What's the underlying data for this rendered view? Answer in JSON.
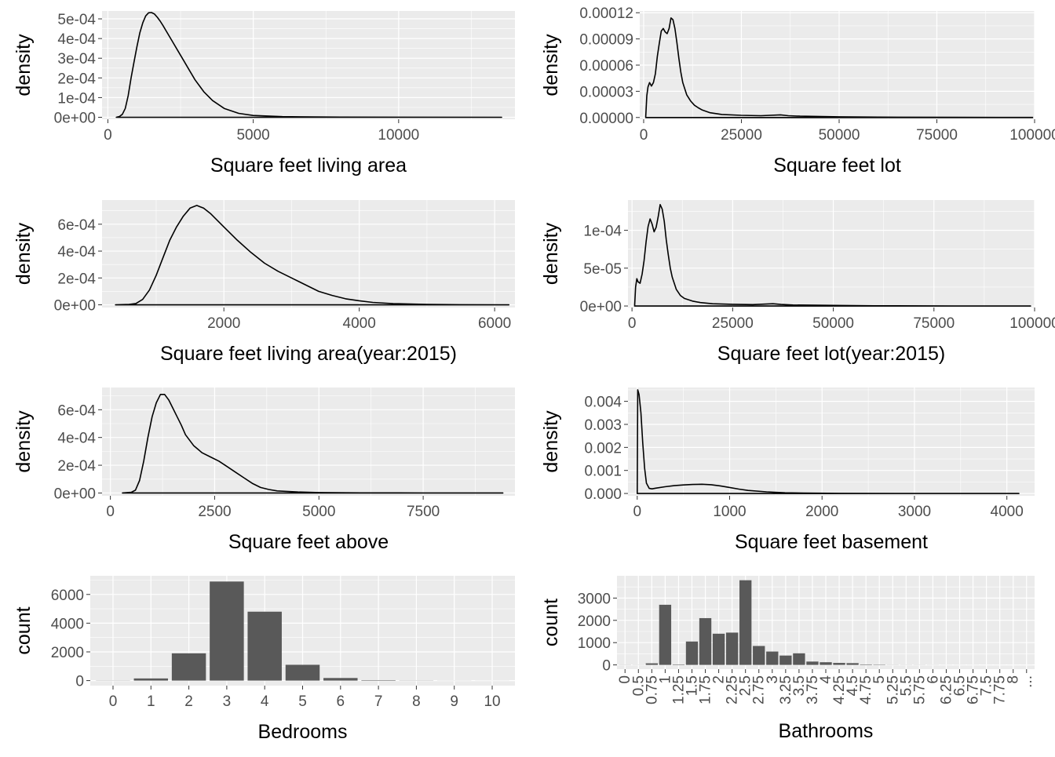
{
  "colors": {
    "panel_bg": "#ebebeb",
    "grid": "#ffffff",
    "line": "#000000",
    "bar": "#595959",
    "tick_text": "#4d4d4d",
    "title_text": "#000000"
  },
  "chart_data": [
    {
      "id": "sqft-living",
      "type": "line",
      "xlabel": "Square feet living area",
      "ylabel": "density",
      "xlim": [
        -200,
        14000
      ],
      "ylim": [
        -1e-05,
        0.00054
      ],
      "xticks": [
        0,
        5000,
        10000
      ],
      "xticklabels": [
        "0",
        "5000",
        "10000"
      ],
      "yticks": [
        0,
        0.0001,
        0.0002,
        0.0003,
        0.0004,
        0.0005
      ],
      "yticklabels": [
        "0e+00",
        "1e-04",
        "2e-04",
        "3e-04",
        "4e-04",
        "5e-04"
      ],
      "x": [
        290,
        400,
        500,
        600,
        700,
        800,
        900,
        1000,
        1100,
        1200,
        1300,
        1400,
        1500,
        1600,
        1700,
        1800,
        1900,
        2000,
        2200,
        2400,
        2600,
        2800,
        3000,
        3300,
        3600,
        4000,
        4500,
        5000,
        6000,
        8000,
        10000,
        13540
      ],
      "y": [
        1e-07,
        4e-06,
        1.5e-05,
        4.5e-05,
        0.00011,
        0.0002,
        0.00028,
        0.00036,
        0.00043,
        0.00048,
        0.000515,
        0.000531,
        0.000532,
        0.000525,
        0.000508,
        0.000488,
        0.000465,
        0.00044,
        0.00039,
        0.00034,
        0.00029,
        0.00024,
        0.00019,
        0.00013,
        8.5e-05,
        4.5e-05,
        2e-05,
        9e-06,
        3e-06,
        8e-07,
        2e-07,
        1e-07
      ]
    },
    {
      "id": "sqft-lot",
      "type": "line",
      "xlabel": "Square feet lot",
      "ylabel": "density",
      "xlim": [
        -1000,
        100000
      ],
      "ylim": [
        -2e-06,
        0.000122
      ],
      "xticks": [
        0,
        25000,
        50000,
        75000,
        100000
      ],
      "xticklabels": [
        "0",
        "25000",
        "50000",
        "75000",
        "100000"
      ],
      "yticks": [
        0,
        3e-05,
        6e-05,
        9e-05,
        0.00012
      ],
      "yticklabels": [
        "0.00000",
        "0.00003",
        "0.00006",
        "0.00009",
        "0.00012"
      ],
      "x": [
        520,
        800,
        1100,
        1500,
        2000,
        2500,
        3000,
        3500,
        4000,
        4500,
        5000,
        5500,
        6000,
        6500,
        7000,
        7500,
        8000,
        8500,
        9000,
        9500,
        10000,
        11000,
        12000,
        13000,
        14000,
        15000,
        17000,
        20000,
        25000,
        30000,
        35000,
        37000,
        40000,
        50000,
        60000,
        80000,
        99500
      ],
      "y": [
        5e-07,
        2.5e-05,
        3.5e-05,
        4e-05,
        3.6e-05,
        4e-05,
        5e-05,
        7e-05,
        8.5e-05,
        9.9e-05,
        0.000102,
        9.8e-05,
        9.6e-05,
        0.000102,
        0.000114,
        0.000112,
        0.000102,
        8.6e-05,
        6.8e-05,
        5.2e-05,
        4e-05,
        2.6e-05,
        1.9e-05,
        1.4e-05,
        1.1e-05,
        8.5e-06,
        5.5e-06,
        3.5e-06,
        2.5e-06,
        2e-06,
        3e-06,
        2e-06,
        1.5e-06,
        8e-07,
        4e-07,
        2e-07,
        1e-07
      ]
    },
    {
      "id": "sqft-living-2015",
      "type": "line",
      "xlabel": "Square feet living area(year:2015)",
      "ylabel": "density",
      "xlim": [
        200,
        6300
      ],
      "ylim": [
        -2e-05,
        0.00078
      ],
      "xticks": [
        2000,
        4000,
        6000
      ],
      "xticklabels": [
        "2000",
        "4000",
        "6000"
      ],
      "yticks": [
        0,
        0.0002,
        0.0004,
        0.0006
      ],
      "yticklabels": [
        "0e+00",
        "2e-04",
        "4e-04",
        "6e-04"
      ],
      "x": [
        399,
        600,
        700,
        800,
        900,
        1000,
        1100,
        1200,
        1300,
        1400,
        1500,
        1600,
        1700,
        1800,
        1900,
        2000,
        2200,
        2400,
        2600,
        2800,
        3000,
        3200,
        3400,
        3600,
        3800,
        4000,
        4200,
        4500,
        5000,
        5500,
        6210
      ],
      "y": [
        1e-07,
        3e-06,
        1e-05,
        4e-05,
        0.00011,
        0.00022,
        0.00035,
        0.00048,
        0.00058,
        0.00066,
        0.00072,
        0.00074,
        0.00072,
        0.00068,
        0.00063,
        0.00058,
        0.00048,
        0.00039,
        0.00031,
        0.00025,
        0.0002,
        0.00015,
        0.0001,
        7e-05,
        4.5e-05,
        3e-05,
        1.8e-05,
        9e-06,
        3e-06,
        1e-06,
        1e-07
      ]
    },
    {
      "id": "sqft-lot-2015",
      "type": "line",
      "xlabel": "Square feet lot(year:2015)",
      "ylabel": "density",
      "xlim": [
        -1000,
        100000
      ],
      "ylim": [
        -2e-06,
        0.00014
      ],
      "xticks": [
        0,
        25000,
        50000,
        75000,
        100000
      ],
      "xticklabels": [
        "0",
        "25000",
        "50000",
        "75000",
        "100000"
      ],
      "yticks": [
        0,
        5e-05,
        0.0001
      ],
      "yticklabels": [
        "0e+00",
        "5e-05",
        "1e-04"
      ],
      "x": [
        651,
        900,
        1200,
        1500,
        2000,
        2500,
        3000,
        3500,
        4000,
        4500,
        5000,
        5500,
        6000,
        6500,
        7000,
        7500,
        8000,
        8500,
        9000,
        9500,
        10000,
        11000,
        12000,
        13000,
        15000,
        17000,
        20000,
        25000,
        30000,
        35000,
        37000,
        40000,
        50000,
        60000,
        80000,
        99000
      ],
      "y": [
        5e-07,
        2.5e-05,
        3.6e-05,
        3.2e-05,
        3e-05,
        4.2e-05,
        6e-05,
        8.5e-05,
        0.000105,
        0.000115,
        0.000108,
        9.8e-05,
        0.000104,
        0.000118,
        0.000134,
        0.000128,
        0.000112,
        8.8e-05,
        6.8e-05,
        5e-05,
        3.8e-05,
        2.2e-05,
        1.4e-05,
        1e-05,
        6.5e-06,
        4.5e-06,
        3e-06,
        2.2e-06,
        1.8e-06,
        3e-06,
        2e-06,
        1.3e-06,
        8e-07,
        3e-07,
        1e-07,
        1e-07
      ]
    },
    {
      "id": "sqft-above",
      "type": "line",
      "xlabel": "Square feet above",
      "ylabel": "density",
      "xlim": [
        -200,
        9700
      ],
      "ylim": [
        -2e-05,
        0.00076
      ],
      "xticks": [
        0,
        2500,
        5000,
        7500
      ],
      "xticklabels": [
        "0",
        "2500",
        "5000",
        "7500"
      ],
      "yticks": [
        0,
        0.0002,
        0.0004,
        0.0006
      ],
      "yticklabels": [
        "0e+00",
        "2e-04",
        "4e-04",
        "6e-04"
      ],
      "x": [
        290,
        500,
        600,
        700,
        800,
        900,
        1000,
        1100,
        1200,
        1300,
        1400,
        1500,
        1600,
        1700,
        1800,
        2000,
        2200,
        2400,
        2600,
        2800,
        3000,
        3200,
        3400,
        3600,
        3800,
        4000,
        4500,
        5000,
        6000,
        7500,
        9410
      ],
      "y": [
        1e-07,
        5e-06,
        2e-05,
        9e-05,
        0.00023,
        0.0004,
        0.00055,
        0.00065,
        0.00071,
        0.00071,
        0.00067,
        0.00061,
        0.00055,
        0.00049,
        0.00042,
        0.00034,
        0.00029,
        0.00026,
        0.00023,
        0.00019,
        0.00015,
        0.00011,
        7e-05,
        4e-05,
        2.5e-05,
        1.5e-05,
        7e-06,
        3e-06,
        1e-06,
        2e-07,
        1e-07
      ]
    },
    {
      "id": "sqft-basement",
      "type": "line",
      "xlabel": "Square feet basement",
      "ylabel": "density",
      "xlim": [
        -100,
        4300
      ],
      "ylim": [
        -0.0001,
        0.0046
      ],
      "xticks": [
        0,
        1000,
        2000,
        3000,
        4000
      ],
      "xticklabels": [
        "0",
        "1000",
        "2000",
        "3000",
        "4000"
      ],
      "yticks": [
        0,
        0.001,
        0.002,
        0.003,
        0.004
      ],
      "yticklabels": [
        "0.000",
        "0.001",
        "0.002",
        "0.003",
        "0.004"
      ],
      "x": [
        0,
        5,
        20,
        40,
        60,
        80,
        100,
        130,
        160,
        200,
        300,
        400,
        500,
        600,
        700,
        800,
        900,
        1000,
        1100,
        1200,
        1400,
        1600,
        1800,
        2200,
        2800,
        3500,
        4130
      ],
      "y": [
        0,
        0.0045,
        0.0043,
        0.0035,
        0.0022,
        0.0011,
        0.00045,
        0.00022,
        0.0002,
        0.00023,
        0.00029,
        0.00034,
        0.00037,
        0.00039,
        0.0004,
        0.00038,
        0.00033,
        0.00026,
        0.00019,
        0.00013,
        7e-05,
        3e-05,
        1.5e-05,
        5e-06,
        2e-06,
        5e-07,
        1e-07
      ]
    },
    {
      "id": "bedrooms",
      "type": "bar",
      "xlabel": "Bedrooms",
      "ylabel": "count",
      "xlim": [
        -0.6,
        10.6
      ],
      "ylim": [
        -350,
        7300
      ],
      "x": [
        0,
        1,
        2,
        3,
        4,
        5,
        6,
        7,
        8,
        9,
        10
      ],
      "values": [
        10,
        150,
        1900,
        6900,
        4800,
        1100,
        180,
        30,
        10,
        5,
        3
      ],
      "xticks": [
        0,
        1,
        2,
        3,
        4,
        5,
        6,
        7,
        8,
        9,
        10
      ],
      "xticklabels": [
        "0",
        "1",
        "2",
        "3",
        "4",
        "5",
        "6",
        "7",
        "8",
        "9",
        "10"
      ],
      "yticks": [
        0,
        2000,
        4000,
        6000
      ],
      "yticklabels": [
        "0",
        "2000",
        "4000",
        "6000"
      ],
      "bar_width": 0.9
    },
    {
      "id": "bathrooms",
      "type": "bar",
      "xlabel": "Bathrooms",
      "ylabel": "count",
      "xlim": [
        -0.6,
        30.6
      ],
      "ylim": [
        -190,
        4000
      ],
      "x": [
        0,
        1,
        2,
        3,
        4,
        5,
        6,
        7,
        8,
        9,
        10,
        11,
        12,
        13,
        14,
        15,
        16,
        17,
        18,
        19,
        20,
        21,
        22,
        23,
        24,
        25,
        26,
        27,
        28,
        29,
        30
      ],
      "values": [
        5,
        4,
        72,
        2700,
        20,
        1050,
        2100,
        1400,
        1450,
        3800,
        850,
        600,
        420,
        520,
        150,
        120,
        90,
        80,
        20,
        15,
        5,
        4,
        4,
        3,
        2,
        2,
        2,
        1,
        1,
        1,
        1
      ],
      "xticks": [
        0,
        1,
        2,
        3,
        4,
        5,
        6,
        7,
        8,
        9,
        10,
        11,
        12,
        13,
        14,
        15,
        16,
        17,
        18,
        19,
        20,
        21,
        22,
        23,
        24,
        25,
        26,
        27,
        28,
        29,
        30
      ],
      "xticklabels": [
        "0",
        "0.5",
        "0.75",
        "1",
        "1.25",
        "1.5",
        "1.75",
        "2",
        "2.25",
        "2.5",
        "2.75",
        "3",
        "3.25",
        "3.5",
        "3.75",
        "4",
        "4.25",
        "4.5",
        "4.75",
        "5",
        "5.25",
        "5.5",
        "5.75",
        "6",
        "6.25",
        "6.5",
        "6.75",
        "7.5",
        "7.75",
        "8",
        "..."
      ],
      "yticks": [
        0,
        1000,
        2000,
        3000
      ],
      "yticklabels": [
        "0",
        "1000",
        "2000",
        "3000"
      ],
      "bar_width": 0.9,
      "rotate_xticks": true
    }
  ]
}
